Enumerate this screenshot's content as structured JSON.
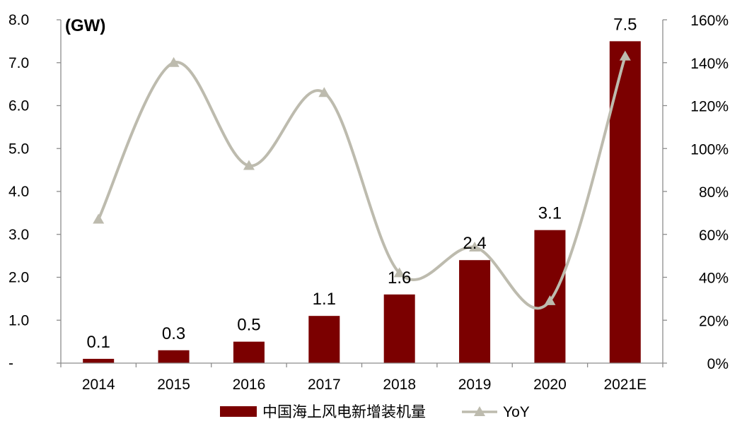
{
  "chart_data": {
    "type": "bar",
    "unit_label": "(GW)",
    "categories": [
      "2014",
      "2015",
      "2016",
      "2017",
      "2018",
      "2019",
      "2020",
      "2021E"
    ],
    "series": [
      {
        "name": "中国海上风电新增装机量",
        "type": "bar",
        "axis": "left",
        "color": "#7B0000",
        "values": [
          0.1,
          0.3,
          0.5,
          1.1,
          1.6,
          2.4,
          3.1,
          7.5
        ],
        "labels": [
          "0.1",
          "0.3",
          "0.5",
          "1.1",
          "1.6",
          "2.4",
          "3.1",
          "7.5"
        ]
      },
      {
        "name": "YoY",
        "type": "line",
        "axis": "right",
        "color": "#BDBBAE",
        "marker": "triangle",
        "smooth": true,
        "values": [
          67,
          140,
          92,
          126,
          42,
          54,
          29,
          143
        ]
      }
    ],
    "y_left": {
      "ylim": [
        0,
        8
      ],
      "ticks": [
        "-",
        "1.0",
        "2.0",
        "3.0",
        "4.0",
        "5.0",
        "6.0",
        "7.0",
        "8.0"
      ]
    },
    "y_right": {
      "ylim": [
        0,
        160
      ],
      "ticks": [
        "0%",
        "20%",
        "40%",
        "60%",
        "80%",
        "100%",
        "120%",
        "140%",
        "160%"
      ]
    },
    "grid": false,
    "legend": "bottom"
  }
}
